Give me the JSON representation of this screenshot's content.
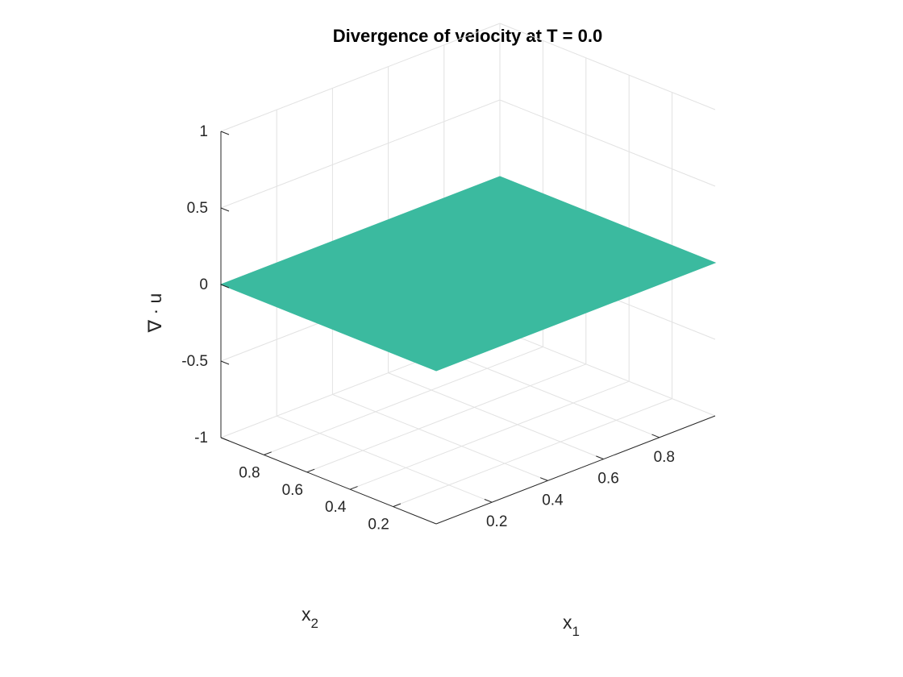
{
  "chart_data": {
    "type": "surface",
    "title": "Divergence of velocity at T = 0.0",
    "xlabel": "x",
    "xlabel_sub": "1",
    "ylabel": "x",
    "ylabel_sub": "2",
    "zlabel": "∇ · u",
    "xlim": [
      0,
      1
    ],
    "ylim": [
      0,
      1
    ],
    "zlim": [
      -1,
      1
    ],
    "xticks": [
      0.2,
      0.4,
      0.6,
      0.8
    ],
    "yticks": [
      0.2,
      0.4,
      0.6,
      0.8
    ],
    "zticks": [
      -1,
      -0.5,
      0,
      0.5,
      1
    ],
    "xtick_labels": [
      "0.2",
      "0.4",
      "0.6",
      "0.8"
    ],
    "ytick_labels": [
      "0.2",
      "0.4",
      "0.6",
      "0.8"
    ],
    "ztick_labels": [
      "-1",
      "-0.5",
      "0",
      "0.5",
      "1"
    ],
    "surface": {
      "x": [
        0,
        1
      ],
      "y": [
        0,
        1
      ],
      "z": [
        [
          0,
          0
        ],
        [
          0,
          0
        ]
      ],
      "color": "#3bba9f"
    },
    "grid": true
  }
}
